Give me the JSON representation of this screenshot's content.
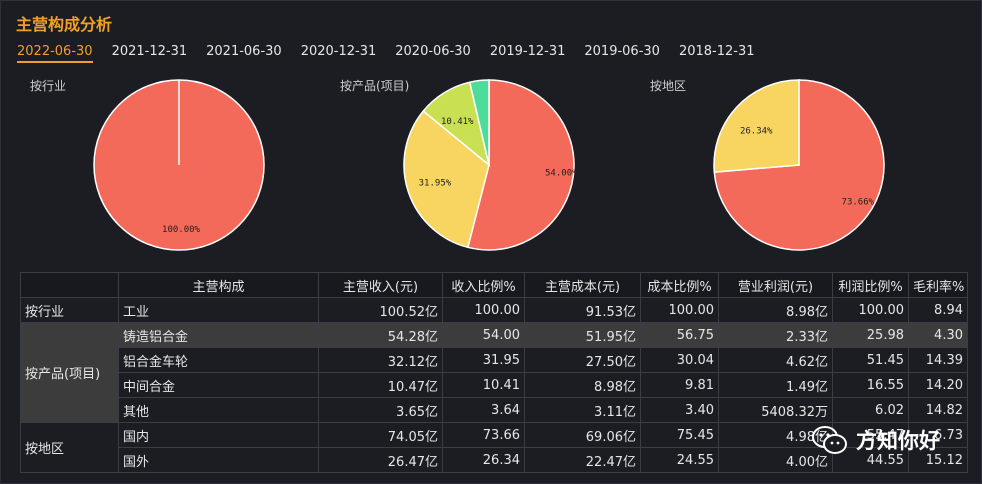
{
  "title": "主营构成分析",
  "tabs": [
    "2022-06-30",
    "2021-12-31",
    "2021-06-30",
    "2020-12-31",
    "2020-06-30",
    "2019-12-31",
    "2019-06-30",
    "2018-12-31"
  ],
  "active_tab": 0,
  "pie_labels": [
    "按行业",
    "按产品(项目)",
    "按地区"
  ],
  "colors": {
    "red": "#f46a5a",
    "yellow": "#f8d460",
    "lime": "#c8e052",
    "teal": "#4fdb9a",
    "accent": "#f0a02a"
  },
  "chart_data": [
    {
      "type": "pie",
      "title": "按行业",
      "slices": [
        {
          "value": 100.0,
          "label": "100.00%",
          "color": "#f46a5a"
        }
      ]
    },
    {
      "type": "pie",
      "title": "按产品(项目)",
      "slices": [
        {
          "value": 54.0,
          "label": "54.00%",
          "color": "#f46a5a"
        },
        {
          "value": 31.95,
          "label": "31.95%",
          "color": "#f8d460"
        },
        {
          "value": 10.41,
          "label": "10.41%",
          "color": "#c8e052"
        },
        {
          "value": 3.64,
          "label": "",
          "color": "#4fdb9a"
        }
      ]
    },
    {
      "type": "pie",
      "title": "按地区",
      "slices": [
        {
          "value": 73.66,
          "label": "73.66%",
          "color": "#f46a5a"
        },
        {
          "value": 26.34,
          "label": "26.34%",
          "color": "#f8d460"
        }
      ]
    }
  ],
  "table": {
    "headers": [
      "主营构成",
      "主营收入(元)",
      "收入比例%",
      "主营成本(元)",
      "成本比例%",
      "营业利润(元)",
      "利润比例%",
      "毛利率%"
    ],
    "groups": [
      {
        "name": "按行业",
        "rows": [
          [
            "工业",
            "100.52亿",
            "100.00",
            "91.53亿",
            "100.00",
            "8.98亿",
            "100.00",
            "8.94"
          ]
        ]
      },
      {
        "name": "按产品(项目)",
        "rows": [
          [
            "铸造铝合金",
            "54.28亿",
            "54.00",
            "51.95亿",
            "56.75",
            "2.33亿",
            "25.98",
            "4.30"
          ],
          [
            "铝合金车轮",
            "32.12亿",
            "31.95",
            "27.50亿",
            "30.04",
            "4.62亿",
            "51.45",
            "14.39"
          ],
          [
            "中间合金",
            "10.47亿",
            "10.41",
            "8.98亿",
            "9.81",
            "1.49亿",
            "16.55",
            "14.20"
          ],
          [
            "其他",
            "3.65亿",
            "3.64",
            "3.11亿",
            "3.40",
            "5408.32万",
            "6.02",
            "14.82"
          ]
        ]
      },
      {
        "name": "按地区",
        "rows": [
          [
            "国内",
            "74.05亿",
            "73.66",
            "69.06亿",
            "75.45",
            "4.98亿",
            "55.47",
            "6.73"
          ],
          [
            "国外",
            "26.47亿",
            "26.34",
            "22.47亿",
            "24.55",
            "4.00亿",
            "44.55",
            "15.12"
          ]
        ]
      }
    ]
  },
  "watermark": "方知你好"
}
